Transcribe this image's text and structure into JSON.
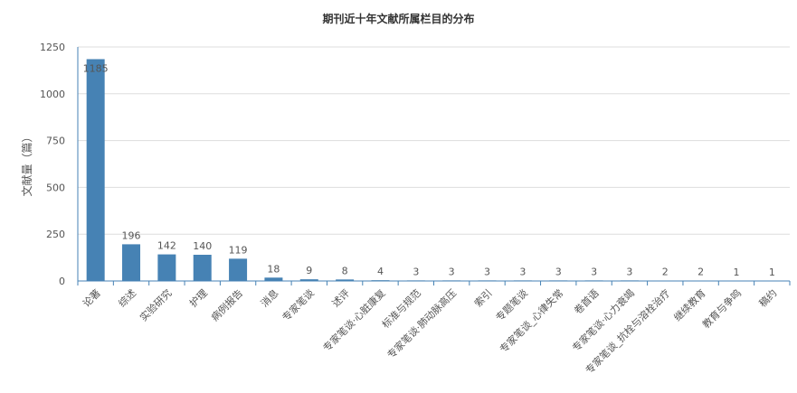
{
  "chart_data": {
    "type": "bar",
    "title": "期刊近十年文献所属栏目的分布",
    "xlabel": "",
    "ylabel": "文献量（篇）",
    "ylim": [
      0,
      1250
    ],
    "yticks": [
      0,
      250,
      500,
      750,
      1000,
      1250
    ],
    "grid": true,
    "legend": "none",
    "categories": [
      "论著",
      "综述",
      "实验研究",
      "护理",
      "病例报告",
      "消息",
      "专家笔谈",
      "述评",
      "专家笔谈·心脏康复",
      "标准与规范",
      "专家笔谈·肺动脉高压",
      "索引",
      "专题笔谈",
      "专家笔谈_心律失常",
      "卷首语",
      "专家笔谈·心力衰竭",
      "专家笔谈_抗栓与溶栓治疗",
      "继续教育",
      "教育与争鸣",
      "稿约"
    ],
    "values": [
      1185,
      196,
      142,
      140,
      119,
      18,
      9,
      8,
      4,
      3,
      3,
      3,
      3,
      3,
      3,
      3,
      2,
      2,
      1,
      1
    ],
    "colors": {
      "bar": "#4682b4",
      "grid": "#dddddd",
      "axis": "#4682b4",
      "text": "#555555"
    }
  }
}
